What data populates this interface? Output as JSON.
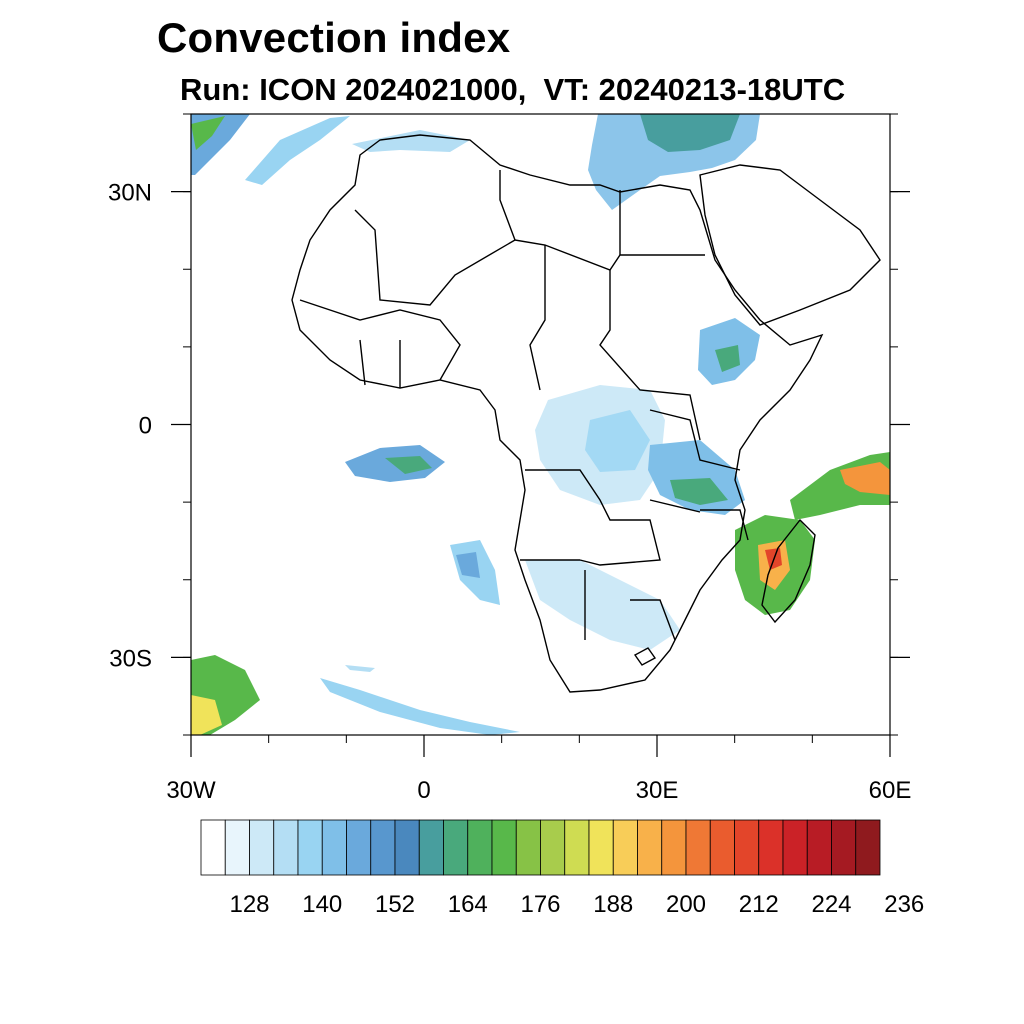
{
  "title": "Convection index",
  "subtitle": "Run: ICON 2024021000,  VT: 20240213-18UTC",
  "axes": {
    "x_ticks": [
      {
        "label": "30W",
        "lon": -30
      },
      {
        "label": "0",
        "lon": 0
      },
      {
        "label": "30E",
        "lon": 30
      },
      {
        "label": "60E",
        "lon": 60
      }
    ],
    "y_ticks": [
      {
        "label": "30N",
        "lat": 30
      },
      {
        "label": "0",
        "lat": 0
      },
      {
        "label": "30S",
        "lat": -30
      }
    ],
    "lon_range": [
      -30,
      60
    ],
    "lat_range": [
      -40,
      40
    ]
  },
  "colorbar": {
    "colors": [
      "#ffffff",
      "#e8f5fc",
      "#cde9f7",
      "#b4def4",
      "#99d4f2",
      "#7fbfe8",
      "#6aa9dc",
      "#5897ce",
      "#4a88be",
      "#489e9e",
      "#49a97c",
      "#4fb15c",
      "#58b84a",
      "#87c246",
      "#a8cc4c",
      "#cfdc52",
      "#f0e35a",
      "#f8cd58",
      "#f8b14a",
      "#f4953c",
      "#ef7835",
      "#ea5c2e",
      "#e3452a",
      "#db3129",
      "#cb2227",
      "#b81c25",
      "#a51a22",
      "#8f1a1e"
    ],
    "tick_labels": [
      "128",
      "140",
      "152",
      "164",
      "176",
      "188",
      "200",
      "212",
      "224",
      "236"
    ]
  }
}
